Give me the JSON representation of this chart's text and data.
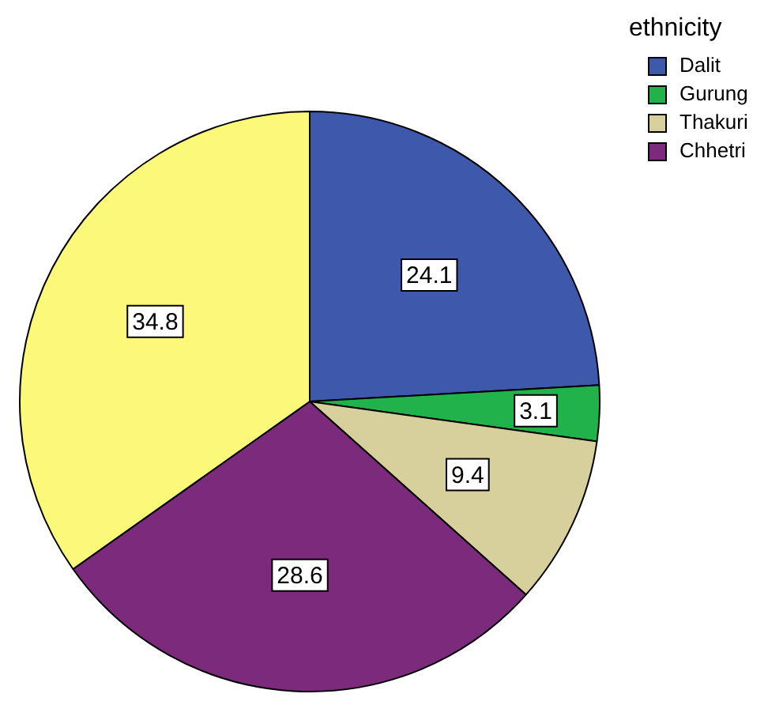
{
  "chart_data": {
    "type": "pie",
    "legend_title": "ethnicity",
    "legend": "top right",
    "data_labels": true,
    "categories": [
      "Dalit",
      "Gurung",
      "Thakuri",
      "Chhetri",
      null
    ],
    "values": [
      24.1,
      3.1,
      9.4,
      28.6,
      34.8
    ],
    "colors": [
      "#3e58ac",
      "#22b24c",
      "#d7d09c",
      "#7c2a7c",
      "#fbf87a"
    ]
  }
}
